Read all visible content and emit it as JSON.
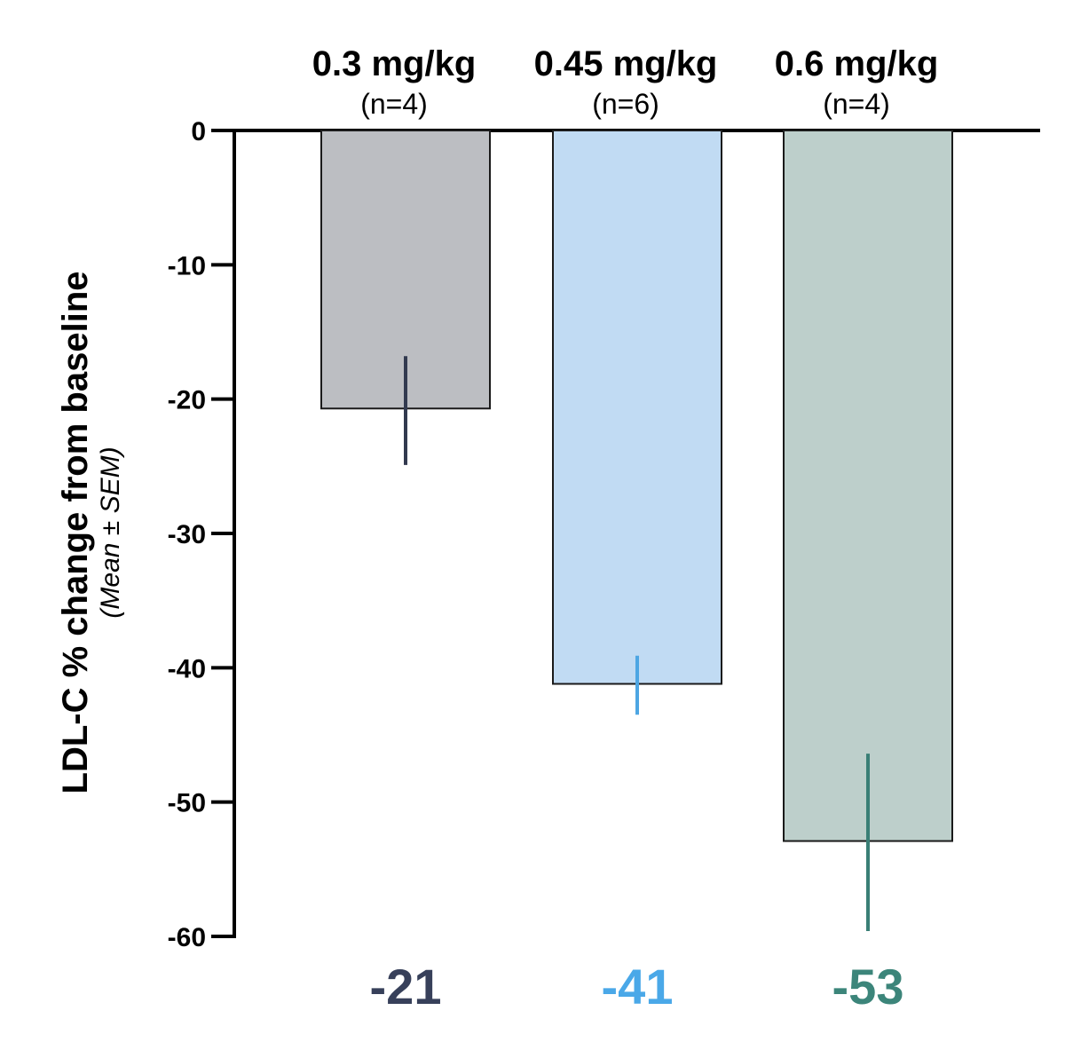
{
  "chart_data": {
    "type": "bar",
    "categories": [
      "0.3 mg/kg",
      "0.45 mg/kg",
      "0.6 mg/kg"
    ],
    "n_labels": [
      "(n=4)",
      "(n=6)",
      "(n=4)"
    ],
    "values": [
      -20.7,
      -41.2,
      -52.9
    ],
    "error_ranges": [
      [
        -24.9,
        -16.8
      ],
      [
        -43.5,
        -39.1
      ],
      [
        -59.6,
        -46.4
      ]
    ],
    "value_labels": [
      "-21",
      "-41",
      "-53"
    ],
    "bar_colors": [
      "#bcbec2",
      "#c1dbf3",
      "#bdcfcb"
    ],
    "error_bar_colors": [
      "#323a4f",
      "#4da6e3",
      "#3a7f76"
    ],
    "value_label_colors": [
      "#37405a",
      "#4aa8e8",
      "#3c857a"
    ],
    "ylabel": "LDL-C % change from baseline",
    "ylabel_sub": "(Mean ± SEM)",
    "yticks": [
      0,
      -10,
      -20,
      -30,
      -40,
      -50,
      -60
    ],
    "ylim": [
      -60,
      0
    ],
    "grid": false,
    "legend": "none"
  }
}
